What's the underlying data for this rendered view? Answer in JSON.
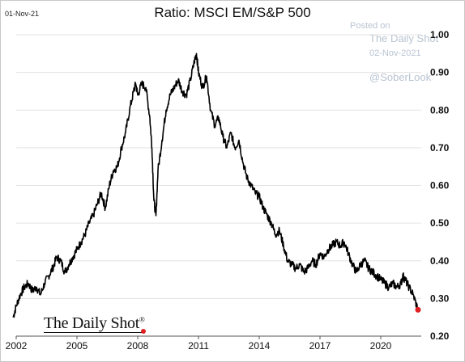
{
  "header": {
    "date_stamp": "01-Nov-21",
    "title": "Ratio: MSCI EM/S&P 500"
  },
  "watermark": {
    "posted_on": "Posted on",
    "source": "The Daily Shot",
    "post_date": "02-Nov-2021",
    "handle": "@SoberLook"
  },
  "logo": {
    "text": "The Daily Shot",
    "registered": "®"
  },
  "colors": {
    "line": "#000000",
    "last_point": "#e02020",
    "gridline": "#e3e3e3",
    "watermark": "#b9c4d2"
  },
  "chart_data": {
    "type": "line",
    "title": "Ratio: MSCI EM/S&P 500",
    "xlabel": "",
    "ylabel": "",
    "xlim": [
      2002.0,
      2022.0
    ],
    "ylim": [
      0.2,
      1.0
    ],
    "x_ticks": [
      2002,
      2005,
      2008,
      2011,
      2014,
      2017,
      2020
    ],
    "x_tick_labels": [
      "2002",
      "2005",
      "2008",
      "2011",
      "2014",
      "2017",
      "2020"
    ],
    "y_ticks": [
      0.2,
      0.3,
      0.4,
      0.5,
      0.6,
      0.7,
      0.8,
      0.9,
      1.0
    ],
    "y_tick_labels": [
      "0.20",
      "0.30",
      "0.40",
      "0.50",
      "0.60",
      "0.70",
      "0.80",
      "0.90",
      "1.00"
    ],
    "y_axis_position": "right",
    "grid": "horizontal",
    "series": [
      {
        "x": [
          2001.85,
          2002.0,
          2002.2,
          2002.4,
          2002.6,
          2002.8,
          2003.0,
          2003.2,
          2003.4,
          2003.6,
          2003.8,
          2004.0,
          2004.2,
          2004.4,
          2004.6,
          2004.8,
          2005.0,
          2005.2,
          2005.4,
          2005.6,
          2005.8,
          2006.0,
          2006.2,
          2006.4,
          2006.6,
          2006.8,
          2007.0,
          2007.2,
          2007.4,
          2007.6,
          2007.8,
          2007.9,
          2008.0,
          2008.2,
          2008.4,
          2008.6,
          2008.7,
          2008.8,
          2008.9,
          2009.0,
          2009.2,
          2009.4,
          2009.6,
          2009.8,
          2010.0,
          2010.2,
          2010.4,
          2010.6,
          2010.8,
          2010.9,
          2011.0,
          2011.2,
          2011.4,
          2011.6,
          2011.8,
          2012.0,
          2012.2,
          2012.4,
          2012.6,
          2012.8,
          2013.0,
          2013.2,
          2013.4,
          2013.6,
          2013.8,
          2014.0,
          2014.2,
          2014.4,
          2014.6,
          2014.8,
          2015.0,
          2015.2,
          2015.4,
          2015.6,
          2015.8,
          2016.0,
          2016.2,
          2016.4,
          2016.6,
          2016.8,
          2017.0,
          2017.2,
          2017.4,
          2017.6,
          2017.8,
          2018.0,
          2018.2,
          2018.4,
          2018.6,
          2018.8,
          2019.0,
          2019.2,
          2019.4,
          2019.6,
          2019.8,
          2020.0,
          2020.2,
          2020.4,
          2020.6,
          2020.8,
          2021.0,
          2021.1,
          2021.2,
          2021.4,
          2021.6,
          2021.84
        ],
        "y": [
          0.25,
          0.28,
          0.31,
          0.33,
          0.34,
          0.32,
          0.33,
          0.31,
          0.34,
          0.36,
          0.38,
          0.41,
          0.4,
          0.37,
          0.39,
          0.41,
          0.43,
          0.45,
          0.47,
          0.5,
          0.52,
          0.55,
          0.58,
          0.54,
          0.6,
          0.64,
          0.65,
          0.7,
          0.74,
          0.8,
          0.85,
          0.87,
          0.84,
          0.87,
          0.86,
          0.78,
          0.7,
          0.56,
          0.52,
          0.64,
          0.72,
          0.8,
          0.84,
          0.86,
          0.88,
          0.85,
          0.84,
          0.88,
          0.93,
          0.95,
          0.9,
          0.86,
          0.89,
          0.8,
          0.76,
          0.78,
          0.73,
          0.7,
          0.74,
          0.7,
          0.72,
          0.66,
          0.62,
          0.6,
          0.58,
          0.57,
          0.54,
          0.52,
          0.5,
          0.47,
          0.48,
          0.44,
          0.4,
          0.39,
          0.38,
          0.39,
          0.37,
          0.38,
          0.4,
          0.39,
          0.42,
          0.41,
          0.43,
          0.44,
          0.45,
          0.44,
          0.45,
          0.42,
          0.39,
          0.37,
          0.39,
          0.4,
          0.38,
          0.37,
          0.36,
          0.35,
          0.34,
          0.33,
          0.34,
          0.33,
          0.34,
          0.36,
          0.35,
          0.33,
          0.31,
          0.27
        ]
      }
    ],
    "last_point": {
      "x": 2021.84,
      "y": 0.27
    }
  }
}
